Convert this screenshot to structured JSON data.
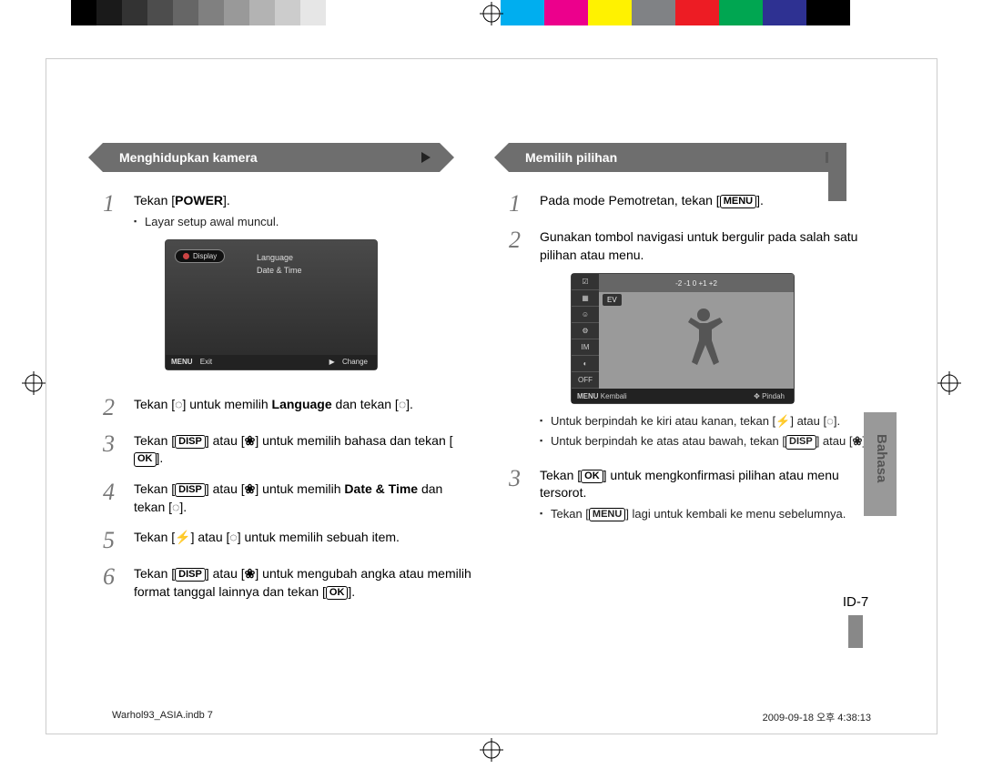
{
  "reg_bars_gray": [
    "#000000",
    "#1a1a1a",
    "#333333",
    "#4d4d4d",
    "#666666",
    "#808080",
    "#999999",
    "#b3b3b3",
    "#cccccc",
    "#e6e6e6",
    "#ffffff"
  ],
  "reg_bars_color": [
    "#00aeef",
    "#ec008c",
    "#fff200",
    "#808285",
    "#ed1c24",
    "#00a651",
    "#2e3192",
    "#000000"
  ],
  "left": {
    "banner": "Menghidupkan kamera",
    "steps": {
      "s1": {
        "text": "Tekan [",
        "btn": "POWER",
        "after": "].",
        "sub1": "Layar setup awal muncul."
      },
      "lcd": {
        "pill": "Display",
        "menu1": "Language",
        "menu2": "Date & Time",
        "foot_exit_label": "MENU",
        "foot_exit": "Exit",
        "foot_change_arrow": "▶",
        "foot_change": "Change"
      },
      "s2": {
        "pre": "Tekan [",
        "icon1": "timer",
        "mid": "] untuk memilih ",
        "bold": "Language",
        "mid2": " dan tekan [",
        "icon2": "timer",
        "after": "]."
      },
      "s3": {
        "pre": "Tekan [",
        "b1": "DISP",
        "m1": "] atau [",
        "icon": "flower",
        "m2": "] untuk memilih bahasa dan tekan [",
        "b2": "OK",
        "after": "]."
      },
      "s4": {
        "pre": "Tekan [",
        "b1": "DISP",
        "m1": "] atau [",
        "icon": "flower",
        "m2": "] untuk memilih ",
        "bold": "Date & Time",
        "m3": " dan tekan [",
        "icon2": "timer",
        "after": "]."
      },
      "s5": {
        "pre": "Tekan [",
        "icon1": "flash",
        "m1": "] atau [",
        "icon2": "timer",
        "m2": "] untuk memilih sebuah item."
      },
      "s6": {
        "pre": "Tekan [",
        "b1": "DISP",
        "m1": "] atau [",
        "icon": "flower",
        "m2": "] untuk mengubah angka atau memilih format tanggal lainnya dan tekan [",
        "b2": "OK",
        "after": "]."
      }
    }
  },
  "right": {
    "banner": "Memilih pilihan",
    "steps": {
      "s1": {
        "pre": "Pada mode Pemotretan, tekan [",
        "b": "MENU",
        "after": "]."
      },
      "s2": {
        "text": "Gunakan tombol navigasi untuk bergulir pada salah satu pilihan atau menu."
      },
      "lcd": {
        "top_ticks": "-2   -1    0    +1   +2",
        "label": "EV",
        "side": [
          "☑",
          "▦",
          "☺",
          "⚙",
          "IM",
          "◐",
          "OFF"
        ],
        "foot_menu": "MENU",
        "foot_back": "Kembali",
        "foot_move_icon": "✥",
        "foot_move": "Pindah"
      },
      "sub1": {
        "pre": "Untuk berpindah ke kiri atau kanan, tekan [",
        "icon1": "flash",
        "m": "] atau [",
        "icon2": "timer",
        "after": "]."
      },
      "sub2": {
        "pre": "Untuk berpindah ke atas atau bawah, tekan [",
        "b1": "DISP",
        "m": "] atau [",
        "icon": "flower",
        "after": "]."
      },
      "s3": {
        "pre": "Tekan [",
        "b": "OK",
        "m": "] untuk mengkonfirmasi pilihan atau menu tersorot."
      },
      "sub3": {
        "pre": "Tekan [",
        "b": "MENU",
        "after": "] lagi untuk kembali ke menu sebelumnya."
      }
    },
    "side_tab": "Bahasa",
    "page_num": "ID-7"
  },
  "meta": {
    "file": "Warhol93_ASIA.indb   7",
    "timestamp": "2009-09-18   오후 4:38:13"
  },
  "icons": {
    "timer": "◌",
    "flower": "❀",
    "flash": "⚡"
  }
}
